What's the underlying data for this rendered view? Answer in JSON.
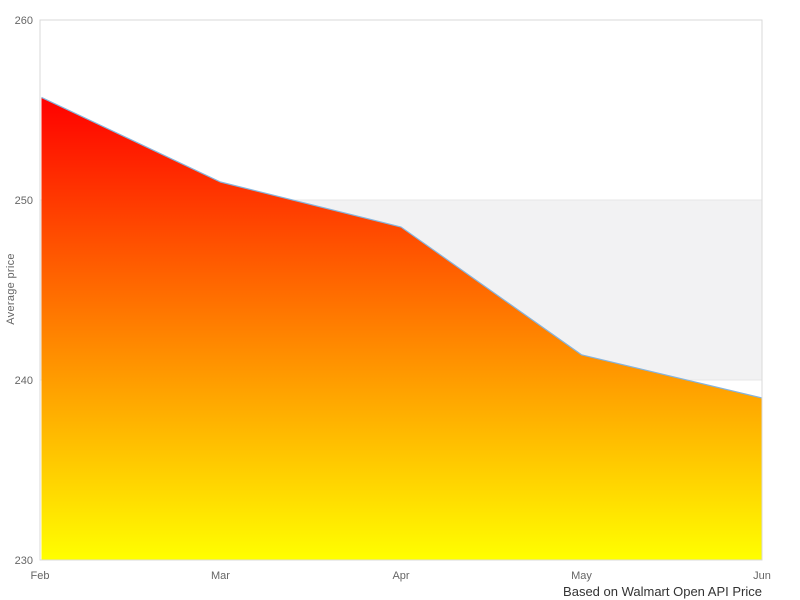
{
  "chart_data": {
    "type": "area",
    "categories": [
      "Feb",
      "Mar",
      "Apr",
      "May",
      "Jun"
    ],
    "values": [
      255.7,
      251,
      248.5,
      241.4,
      239
    ],
    "title": "",
    "xlabel": "",
    "ylabel": "Average price",
    "caption": "Based on Walmart Open API Price",
    "ylim": [
      230,
      260
    ],
    "yticks": [
      230,
      240,
      250,
      260
    ],
    "grid": "off",
    "legend": "none",
    "bands": [
      {
        "from": 240,
        "to": 250,
        "color": "#f2f2f3"
      }
    ],
    "colors": {
      "line": "#86b4dc",
      "gradient_top": "#ff0000",
      "gradient_mid": "#ff8000",
      "gradient_bottom": "#ffff00",
      "band": "#f2f2f3",
      "band_edge": "#e7e7e7",
      "plot_border": "#d9d9d9",
      "tick_label": "#666666",
      "caption_text": "#333333",
      "background": "#ffffff"
    }
  }
}
